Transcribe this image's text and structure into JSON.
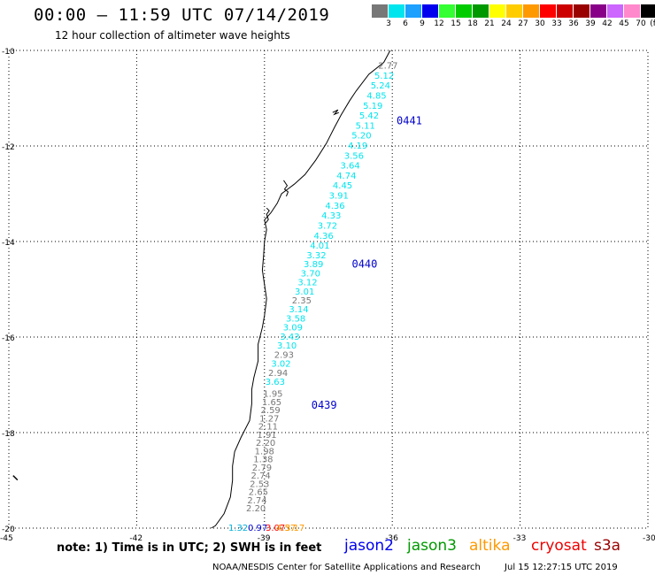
{
  "header": {
    "title": "00:00 – 11:59 UTC 07/14/2019",
    "subtitle": "12 hour collection of altimeter wave heights"
  },
  "color_scale": {
    "colors": [
      "#777777",
      "#00e5ee",
      "#1ea0ff",
      "#0000ee",
      "#33ff33",
      "#00cc00",
      "#009900",
      "#ffff00",
      "#ffcc00",
      "#ff9900",
      "#ff0000",
      "#cc0000",
      "#990000",
      "#880088",
      "#cc66ff",
      "#ff88cc",
      "#000000"
    ],
    "labels": [
      "3",
      "6",
      "9",
      "12",
      "15",
      "18",
      "21",
      "24",
      "27",
      "30",
      "33",
      "36",
      "39",
      "42",
      "45",
      "70",
      "(ft)"
    ]
  },
  "map": {
    "lat_ticks": [
      "-10",
      "-12",
      "-14",
      "-16",
      "-18",
      "-20"
    ],
    "lon_ticks": [
      "-45",
      "-42",
      "-39",
      "-36",
      "-33",
      "-30"
    ],
    "passes": [
      {
        "id": "0441",
        "color": "#0000cc",
        "readings": [
          {
            "v": "2.77",
            "c": "#777777"
          },
          {
            "v": "5.12",
            "c": "#00e5ee"
          },
          {
            "v": "5.24",
            "c": "#00e5ee"
          },
          {
            "v": "4.85",
            "c": "#00e5ee"
          },
          {
            "v": "5.19",
            "c": "#00e5ee"
          },
          {
            "v": "5.42",
            "c": "#00e5ee"
          },
          {
            "v": "5.11",
            "c": "#00e5ee"
          },
          {
            "v": "5.20",
            "c": "#00e5ee"
          },
          {
            "v": "4.19",
            "c": "#00e5ee"
          },
          {
            "v": "3.56",
            "c": "#00e5ee"
          },
          {
            "v": "3.64",
            "c": "#00e5ee"
          },
          {
            "v": "4.74",
            "c": "#00e5ee"
          },
          {
            "v": "4.45",
            "c": "#00e5ee"
          },
          {
            "v": "3.91",
            "c": "#00e5ee"
          },
          {
            "v": "4.36",
            "c": "#00e5ee"
          },
          {
            "v": "4.33",
            "c": "#00e5ee"
          },
          {
            "v": "3.72",
            "c": "#00e5ee"
          },
          {
            "v": "4.36",
            "c": "#00e5ee"
          },
          {
            "v": "4.01",
            "c": "#00e5ee"
          }
        ]
      },
      {
        "id": "0440",
        "color": "#0000cc",
        "readings": [
          {
            "v": "3.32",
            "c": "#00e5ee"
          },
          {
            "v": "3.89",
            "c": "#00e5ee"
          },
          {
            "v": "3.70",
            "c": "#00e5ee"
          },
          {
            "v": "3.12",
            "c": "#00e5ee"
          },
          {
            "v": "3.01",
            "c": "#00e5ee"
          },
          {
            "v": "2.35",
            "c": "#777777"
          },
          {
            "v": "3.14",
            "c": "#00e5ee"
          },
          {
            "v": "3.58",
            "c": "#00e5ee"
          },
          {
            "v": "3.09",
            "c": "#00e5ee"
          },
          {
            "v": "3.43",
            "c": "#00e5ee"
          },
          {
            "v": "3.10",
            "c": "#00e5ee"
          },
          {
            "v": "2.93",
            "c": "#777777"
          },
          {
            "v": "3.02",
            "c": "#00e5ee"
          },
          {
            "v": "2.94",
            "c": "#777777"
          },
          {
            "v": "3.63",
            "c": "#00e5ee"
          }
        ]
      },
      {
        "id": "0439",
        "color": "#0000cc",
        "readings": [
          {
            "v": "1.95",
            "c": "#777777"
          },
          {
            "v": "1.65",
            "c": "#777777"
          },
          {
            "v": "2.59",
            "c": "#777777"
          },
          {
            "v": "1.27",
            "c": "#777777"
          },
          {
            "v": "2.11",
            "c": "#777777"
          },
          {
            "v": "1.91",
            "c": "#777777"
          },
          {
            "v": "2.20",
            "c": "#777777"
          },
          {
            "v": "1.98",
            "c": "#777777"
          },
          {
            "v": "1.38",
            "c": "#777777"
          },
          {
            "v": "2.79",
            "c": "#777777"
          },
          {
            "v": "2.74",
            "c": "#777777"
          },
          {
            "v": "2.53",
            "c": "#777777"
          },
          {
            "v": "2.65",
            "c": "#777777"
          },
          {
            "v": "2.74",
            "c": "#777777"
          },
          {
            "v": "2.20",
            "c": "#777777"
          }
        ]
      }
    ],
    "bottom_cluster": [
      {
        "v": "1.32",
        "c": "#00b0dd"
      },
      {
        "v": "0.97",
        "c": "#0000cc"
      },
      {
        "v": "3.07",
        "c": "#ff0000"
      },
      {
        "v": "4.57",
        "c": "#ff9900"
      },
      {
        "v": "3.17",
        "c": "#ff9900"
      }
    ]
  },
  "note": "note: 1) Time is in UTC; 2) SWH is in feet",
  "legend": [
    {
      "label": "jason2",
      "color": "#0000ee"
    },
    {
      "label": "jason3",
      "color": "#009900"
    },
    {
      "label": "altika",
      "color": "#ff9900"
    },
    {
      "label": "cryosat",
      "color": "#ee0000"
    },
    {
      "label": "s3a",
      "color": "#990000"
    }
  ],
  "footer": {
    "credit": "NOAA/NESDIS Center for Satellite Applications and Research",
    "timestamp": "Jul 15 12:27:15 UTC 2019"
  }
}
